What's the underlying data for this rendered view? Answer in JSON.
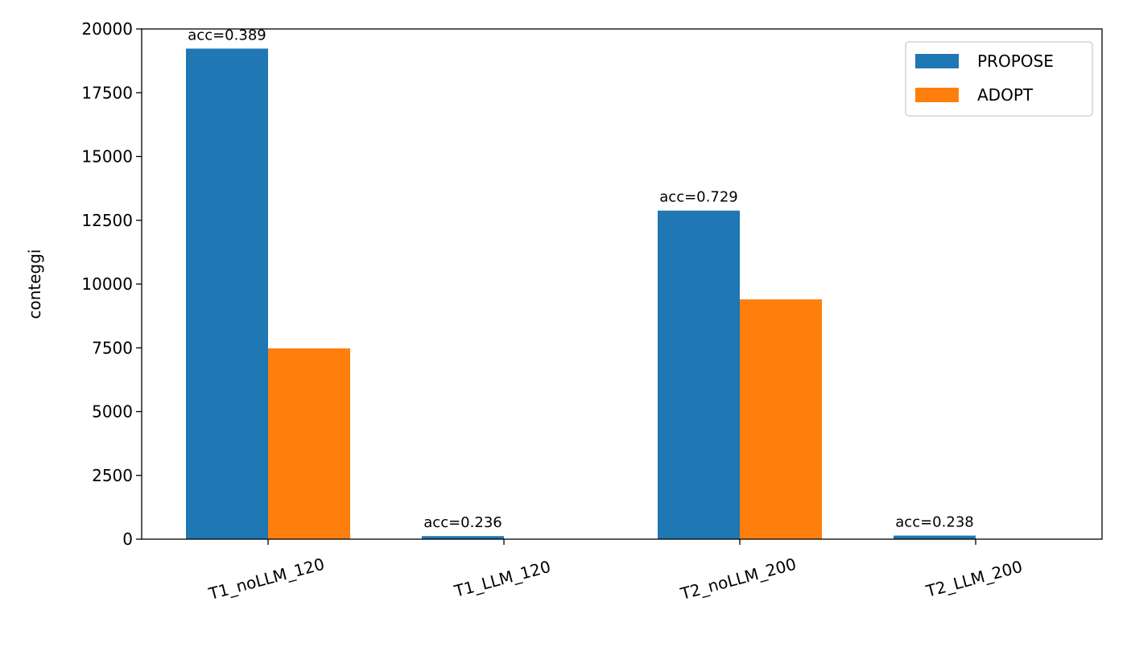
{
  "chart_data": {
    "type": "bar",
    "categories": [
      "T1_noLLM_120",
      "T1_LLM_120",
      "T2_noLLM_200",
      "T2_LLM_200"
    ],
    "series": [
      {
        "name": "PROPOSE",
        "values": [
          19230,
          120,
          12880,
          140
        ],
        "color": "#1f77b4"
      },
      {
        "name": "ADOPT",
        "values": [
          7480,
          0,
          9400,
          0
        ],
        "color": "#ff7f0e"
      }
    ],
    "annotations": [
      "acc=0.389",
      "acc=0.236",
      "acc=0.729",
      "acc=0.238"
    ],
    "ylabel": "conteggi",
    "xlabel": "",
    "title": "",
    "ylim": [
      0,
      20000
    ],
    "yticks": [
      0,
      2500,
      5000,
      7500,
      10000,
      12500,
      15000,
      17500,
      20000
    ],
    "ytick_labels": [
      "0",
      "2500",
      "5000",
      "7500",
      "10000",
      "12500",
      "15000",
      "17500",
      "20000"
    ],
    "grid": false,
    "legend_position": "top-right"
  }
}
